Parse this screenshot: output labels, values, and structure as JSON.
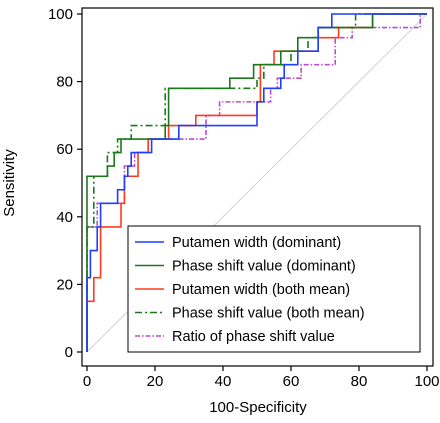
{
  "chart_data": {
    "type": "line",
    "title": "",
    "xlabel": "100-Specificity",
    "ylabel": "Sensitivity",
    "xlim": [
      0,
      100
    ],
    "ylim": [
      0,
      100
    ],
    "xticks": [
      0,
      20,
      40,
      60,
      80,
      100
    ],
    "yticks": [
      0,
      20,
      40,
      60,
      80,
      100
    ],
    "grid": false,
    "legend_position": "bottom-right",
    "reference_line": {
      "from": [
        0,
        0
      ],
      "to": [
        100,
        100
      ],
      "color": "#d3d3d3"
    },
    "series": [
      {
        "name": "Putamen width (dominant)",
        "color": "#1f3fff",
        "style": "solid",
        "points": [
          [
            0,
            0
          ],
          [
            0,
            22
          ],
          [
            1,
            22
          ],
          [
            1,
            30
          ],
          [
            3,
            30
          ],
          [
            3,
            37
          ],
          [
            4,
            37
          ],
          [
            4,
            44
          ],
          [
            9,
            44
          ],
          [
            9,
            48
          ],
          [
            11,
            48
          ],
          [
            11,
            52
          ],
          [
            12,
            52
          ],
          [
            12,
            55
          ],
          [
            13,
            55
          ],
          [
            13,
            59
          ],
          [
            19,
            59
          ],
          [
            19,
            63
          ],
          [
            27,
            63
          ],
          [
            27,
            67
          ],
          [
            50,
            67
          ],
          [
            50,
            74
          ],
          [
            52,
            74
          ],
          [
            52,
            78
          ],
          [
            57,
            78
          ],
          [
            57,
            81
          ],
          [
            58,
            81
          ],
          [
            58,
            85
          ],
          [
            62,
            85
          ],
          [
            62,
            89
          ],
          [
            68,
            89
          ],
          [
            68,
            96
          ],
          [
            72,
            96
          ],
          [
            72,
            100
          ],
          [
            100,
            100
          ]
        ]
      },
      {
        "name": "Phase shift value (dominant)",
        "color": "#1a7a1a",
        "style": "solid",
        "points": [
          [
            0,
            0
          ],
          [
            0,
            52
          ],
          [
            6,
            52
          ],
          [
            6,
            55
          ],
          [
            8,
            55
          ],
          [
            8,
            59
          ],
          [
            10,
            59
          ],
          [
            10,
            63
          ],
          [
            23,
            63
          ],
          [
            23,
            67
          ],
          [
            24,
            67
          ],
          [
            24,
            78
          ],
          [
            42,
            78
          ],
          [
            42,
            81
          ],
          [
            49,
            81
          ],
          [
            49,
            85
          ],
          [
            57,
            85
          ],
          [
            57,
            89
          ],
          [
            62,
            89
          ],
          [
            62,
            93
          ],
          [
            68,
            93
          ],
          [
            68,
            96
          ],
          [
            84,
            96
          ],
          [
            84,
            100
          ],
          [
            100,
            100
          ]
        ]
      },
      {
        "name": "Putamen width (both mean)",
        "color": "#ff3b1f",
        "style": "solid",
        "points": [
          [
            0,
            0
          ],
          [
            0,
            15
          ],
          [
            2,
            15
          ],
          [
            2,
            22
          ],
          [
            4,
            22
          ],
          [
            4,
            37
          ],
          [
            10,
            37
          ],
          [
            10,
            44
          ],
          [
            11,
            44
          ],
          [
            11,
            52
          ],
          [
            15,
            52
          ],
          [
            15,
            59
          ],
          [
            18,
            59
          ],
          [
            18,
            63
          ],
          [
            24,
            63
          ],
          [
            24,
            67
          ],
          [
            32,
            67
          ],
          [
            32,
            70
          ],
          [
            50,
            70
          ],
          [
            50,
            74
          ],
          [
            51,
            74
          ],
          [
            51,
            85
          ],
          [
            55,
            85
          ],
          [
            55,
            89
          ],
          [
            68,
            89
          ],
          [
            68,
            93
          ],
          [
            74,
            93
          ],
          [
            74,
            96
          ],
          [
            84,
            96
          ],
          [
            84,
            100
          ],
          [
            100,
            100
          ]
        ]
      },
      {
        "name": "Phase shift value (both mean)",
        "color": "#1a7a1a",
        "style": "dashdot",
        "points": [
          [
            0,
            0
          ],
          [
            0,
            37
          ],
          [
            2,
            37
          ],
          [
            2,
            52
          ],
          [
            6,
            52
          ],
          [
            6,
            59
          ],
          [
            9,
            59
          ],
          [
            9,
            63
          ],
          [
            13,
            63
          ],
          [
            13,
            67
          ],
          [
            23,
            67
          ],
          [
            23,
            78
          ],
          [
            50,
            78
          ],
          [
            50,
            81
          ],
          [
            52,
            81
          ],
          [
            52,
            85
          ],
          [
            60,
            85
          ],
          [
            60,
            89
          ],
          [
            65,
            89
          ],
          [
            65,
            93
          ],
          [
            68,
            93
          ],
          [
            68,
            96
          ],
          [
            79,
            96
          ],
          [
            79,
            100
          ],
          [
            100,
            100
          ]
        ]
      },
      {
        "name": "Ratio of phase shift value",
        "color": "#b84dd6",
        "style": "dashdot2",
        "points": [
          [
            0,
            0
          ],
          [
            0,
            37
          ],
          [
            3,
            37
          ],
          [
            3,
            44
          ],
          [
            11,
            44
          ],
          [
            11,
            55
          ],
          [
            14,
            55
          ],
          [
            14,
            59
          ],
          [
            18,
            59
          ],
          [
            18,
            63
          ],
          [
            35,
            63
          ],
          [
            35,
            70
          ],
          [
            39,
            70
          ],
          [
            39,
            74
          ],
          [
            54,
            74
          ],
          [
            54,
            78
          ],
          [
            56,
            78
          ],
          [
            56,
            81
          ],
          [
            63,
            81
          ],
          [
            63,
            85
          ],
          [
            73,
            85
          ],
          [
            73,
            93
          ],
          [
            78,
            93
          ],
          [
            78,
            96
          ],
          [
            98,
            96
          ],
          [
            98,
            100
          ],
          [
            100,
            100
          ]
        ]
      }
    ]
  }
}
